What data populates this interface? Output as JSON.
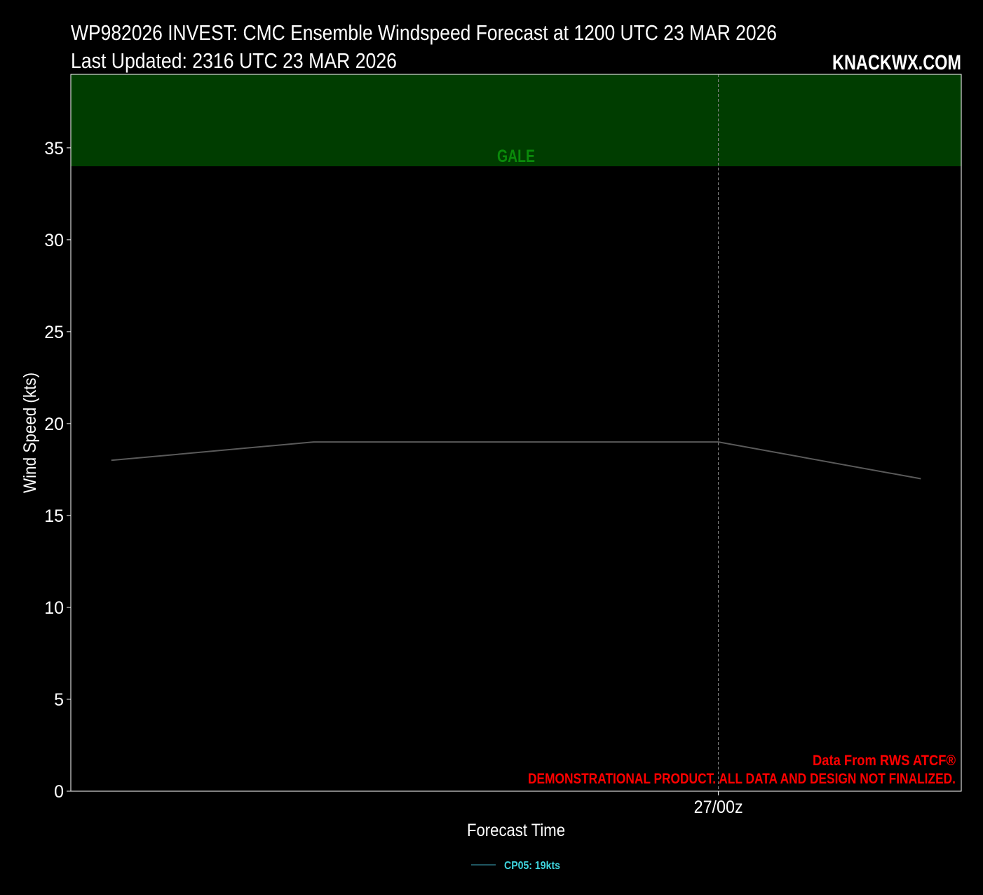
{
  "chart_data": {
    "type": "line",
    "title": "WP982026 INVEST: CMC Ensemble Windspeed Forecast at 1200 UTC 23 MAR 2026",
    "subtitle": "Last Updated: 2316 UTC 23 MAR 2026",
    "brand": "KNACKWX.COM",
    "x_label": "Forecast Time",
    "y_label": "Wind Speed (kts)",
    "categories": [
      null,
      null,
      null,
      "27/00z",
      null
    ],
    "series": [
      {
        "name": "CP05: 19kts",
        "color": "#5a5a5a",
        "legend_color": "#1f5560",
        "legend_text_color": "#3fd6e0",
        "values": [
          18,
          19,
          19,
          19,
          17
        ]
      }
    ],
    "ylim": [
      0,
      39
    ],
    "yticks": [
      0,
      5,
      10,
      15,
      20,
      25,
      30,
      35
    ],
    "band": {
      "label": "GALE",
      "from": 34,
      "color": "#003d00",
      "label_color": "#0a8a0a"
    },
    "annotations": [
      "Data From RWS ATCF®",
      "DEMONSTRATIONAL PRODUCT. ALL DATA AND DESIGN NOT FINALIZED."
    ],
    "annotation_color": "#ff0000",
    "background": "#000000",
    "grid": true
  }
}
